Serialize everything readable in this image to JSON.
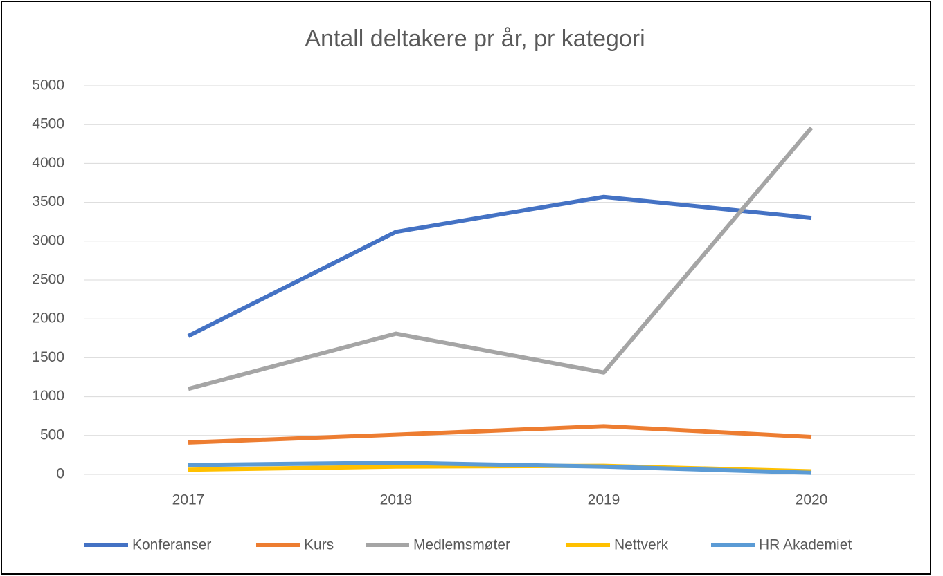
{
  "chart_data": {
    "type": "line",
    "title": "Antall deltakere pr år, pr kategori",
    "categories": [
      "2017",
      "2018",
      "2019",
      "2020"
    ],
    "series": [
      {
        "name": "Konferanser",
        "color": "#4472c4",
        "values": [
          1780,
          3120,
          3570,
          3300
        ]
      },
      {
        "name": "Kurs",
        "color": "#ed7d31",
        "values": [
          410,
          510,
          620,
          480
        ]
      },
      {
        "name": "Medlemsmøter",
        "color": "#a5a5a5",
        "values": [
          1100,
          1810,
          1310,
          4460
        ]
      },
      {
        "name": "Nettverk",
        "color": "#ffc000",
        "values": [
          60,
          100,
          110,
          40
        ]
      },
      {
        "name": "HR Akademiet",
        "color": "#5b9bd5",
        "values": [
          120,
          150,
          100,
          20
        ]
      }
    ],
    "ylim": [
      0,
      5000
    ],
    "yticks": [
      0,
      500,
      1000,
      1500,
      2000,
      2500,
      3000,
      3500,
      4000,
      4500,
      5000
    ],
    "grid": true,
    "legend": "bottom"
  }
}
